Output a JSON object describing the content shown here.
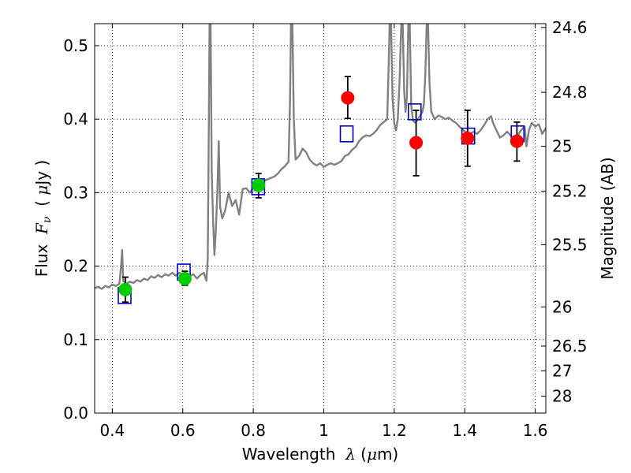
{
  "chart_data": {
    "type": "scatter",
    "xlabel": {
      "prefix": "Wavelength  ",
      "symbol": "λ",
      "unit_open": " (",
      "unit_mu": "μ",
      "unit_rest": "m)"
    },
    "ylabel": {
      "prefix": "Flux  ",
      "symbol": "F",
      "sub": "ν",
      "unit_open": "  ( ",
      "unit_mu": "μ",
      "unit_rest": "Jy )"
    },
    "y2label": "Magnitude (AB)",
    "xlim": [
      0.35,
      1.63
    ],
    "ylim": [
      0.0,
      0.53
    ],
    "grid": true,
    "grid_style": "dotted",
    "x_ticks": [
      {
        "value": 0.4,
        "label": "0.4"
      },
      {
        "value": 0.6,
        "label": "0.6"
      },
      {
        "value": 0.8,
        "label": "0.8"
      },
      {
        "value": 1.0,
        "label": "1"
      },
      {
        "value": 1.2,
        "label": "1.2"
      },
      {
        "value": 1.4,
        "label": "1.4"
      },
      {
        "value": 1.6,
        "label": "1.6"
      }
    ],
    "y_ticks": [
      {
        "value": 0.0,
        "label": "0.0"
      },
      {
        "value": 0.1,
        "label": "0.1"
      },
      {
        "value": 0.2,
        "label": "0.2"
      },
      {
        "value": 0.3,
        "label": "0.3"
      },
      {
        "value": 0.4,
        "label": "0.4"
      },
      {
        "value": 0.5,
        "label": "0.5"
      }
    ],
    "y2_ticks": [
      {
        "value": 24.6,
        "label": "24.6"
      },
      {
        "value": 24.8,
        "label": "24.8"
      },
      {
        "value": 25.0,
        "label": "25"
      },
      {
        "value": 25.2,
        "label": "25.2"
      },
      {
        "value": 25.5,
        "label": "25.5"
      },
      {
        "value": 26.0,
        "label": "26"
      },
      {
        "value": 26.5,
        "label": "26.5"
      },
      {
        "value": 27.0,
        "label": "27"
      },
      {
        "value": 28.0,
        "label": "28"
      }
    ],
    "series": [
      {
        "kind": "line",
        "color": "#808080",
        "points": [
          [
            0.35,
            0.17
          ],
          [
            0.36,
            0.172
          ],
          [
            0.37,
            0.169
          ],
          [
            0.38,
            0.173
          ],
          [
            0.39,
            0.171
          ],
          [
            0.4,
            0.175
          ],
          [
            0.41,
            0.173
          ],
          [
            0.42,
            0.176
          ],
          [
            0.425,
            0.2
          ],
          [
            0.428,
            0.222
          ],
          [
            0.431,
            0.18
          ],
          [
            0.44,
            0.176
          ],
          [
            0.45,
            0.179
          ],
          [
            0.46,
            0.177
          ],
          [
            0.47,
            0.181
          ],
          [
            0.48,
            0.179
          ],
          [
            0.49,
            0.183
          ],
          [
            0.5,
            0.181
          ],
          [
            0.51,
            0.186
          ],
          [
            0.52,
            0.184
          ],
          [
            0.53,
            0.188
          ],
          [
            0.54,
            0.185
          ],
          [
            0.55,
            0.189
          ],
          [
            0.56,
            0.187
          ],
          [
            0.57,
            0.191
          ],
          [
            0.58,
            0.187
          ],
          [
            0.59,
            0.191
          ],
          [
            0.6,
            0.186
          ],
          [
            0.61,
            0.19
          ],
          [
            0.62,
            0.186
          ],
          [
            0.63,
            0.189
          ],
          [
            0.64,
            0.183
          ],
          [
            0.65,
            0.188
          ],
          [
            0.66,
            0.191
          ],
          [
            0.667,
            0.18
          ],
          [
            0.671,
            0.21
          ],
          [
            0.674,
            0.4
          ],
          [
            0.676,
            0.53
          ],
          [
            0.679,
            0.53
          ],
          [
            0.682,
            0.33
          ],
          [
            0.686,
            0.26
          ],
          [
            0.69,
            0.215
          ],
          [
            0.694,
            0.25
          ],
          [
            0.698,
            0.3
          ],
          [
            0.702,
            0.37
          ],
          [
            0.706,
            0.28
          ],
          [
            0.712,
            0.265
          ],
          [
            0.72,
            0.275
          ],
          [
            0.73,
            0.3
          ],
          [
            0.74,
            0.282
          ],
          [
            0.75,
            0.29
          ],
          [
            0.76,
            0.27
          ],
          [
            0.77,
            0.305
          ],
          [
            0.78,
            0.306
          ],
          [
            0.79,
            0.3
          ],
          [
            0.8,
            0.306
          ],
          [
            0.81,
            0.31
          ],
          [
            0.82,
            0.314
          ],
          [
            0.83,
            0.316
          ],
          [
            0.84,
            0.318
          ],
          [
            0.85,
            0.32
          ],
          [
            0.86,
            0.322
          ],
          [
            0.87,
            0.326
          ],
          [
            0.88,
            0.332
          ],
          [
            0.89,
            0.336
          ],
          [
            0.9,
            0.342
          ],
          [
            0.904,
            0.42
          ],
          [
            0.907,
            0.53
          ],
          [
            0.911,
            0.53
          ],
          [
            0.915,
            0.4
          ],
          [
            0.92,
            0.345
          ],
          [
            0.93,
            0.35
          ],
          [
            0.94,
            0.36
          ],
          [
            0.95,
            0.355
          ],
          [
            0.96,
            0.345
          ],
          [
            0.97,
            0.34
          ],
          [
            0.98,
            0.337
          ],
          [
            0.99,
            0.34
          ],
          [
            1.0,
            0.335
          ],
          [
            1.01,
            0.338
          ],
          [
            1.02,
            0.34
          ],
          [
            1.03,
            0.338
          ],
          [
            1.04,
            0.34
          ],
          [
            1.05,
            0.343
          ],
          [
            1.06,
            0.35
          ],
          [
            1.07,
            0.352
          ],
          [
            1.08,
            0.358
          ],
          [
            1.09,
            0.362
          ],
          [
            1.1,
            0.37
          ],
          [
            1.11,
            0.375
          ],
          [
            1.12,
            0.378
          ],
          [
            1.13,
            0.377
          ],
          [
            1.14,
            0.38
          ],
          [
            1.15,
            0.385
          ],
          [
            1.16,
            0.392
          ],
          [
            1.17,
            0.396
          ],
          [
            1.18,
            0.4
          ],
          [
            1.184,
            0.47
          ],
          [
            1.187,
            0.53
          ],
          [
            1.191,
            0.53
          ],
          [
            1.195,
            0.43
          ],
          [
            1.2,
            0.395
          ],
          [
            1.205,
            0.385
          ],
          [
            1.21,
            0.4
          ],
          [
            1.215,
            0.45
          ],
          [
            1.22,
            0.53
          ],
          [
            1.224,
            0.53
          ],
          [
            1.228,
            0.44
          ],
          [
            1.232,
            0.41
          ],
          [
            1.236,
            0.43
          ],
          [
            1.24,
            0.53
          ],
          [
            1.244,
            0.53
          ],
          [
            1.248,
            0.42
          ],
          [
            1.253,
            0.398
          ],
          [
            1.26,
            0.395
          ],
          [
            1.27,
            0.402
          ],
          [
            1.28,
            0.41
          ],
          [
            1.284,
            0.42
          ],
          [
            1.288,
            0.46
          ],
          [
            1.292,
            0.53
          ],
          [
            1.296,
            0.53
          ],
          [
            1.3,
            0.45
          ],
          [
            1.305,
            0.41
          ],
          [
            1.315,
            0.4
          ],
          [
            1.325,
            0.405
          ],
          [
            1.335,
            0.403
          ],
          [
            1.345,
            0.4
          ],
          [
            1.355,
            0.402
          ],
          [
            1.365,
            0.398
          ],
          [
            1.375,
            0.395
          ],
          [
            1.385,
            0.39
          ],
          [
            1.395,
            0.385
          ],
          [
            1.405,
            0.382
          ],
          [
            1.415,
            0.38
          ],
          [
            1.425,
            0.383
          ],
          [
            1.435,
            0.38
          ],
          [
            1.445,
            0.385
          ],
          [
            1.455,
            0.392
          ],
          [
            1.465,
            0.4
          ],
          [
            1.475,
            0.404
          ],
          [
            1.48,
            0.395
          ],
          [
            1.49,
            0.385
          ],
          [
            1.5,
            0.375
          ],
          [
            1.51,
            0.378
          ],
          [
            1.52,
            0.383
          ],
          [
            1.53,
            0.378
          ],
          [
            1.54,
            0.373
          ],
          [
            1.55,
            0.378
          ],
          [
            1.56,
            0.385
          ],
          [
            1.57,
            0.39
          ],
          [
            1.575,
            0.363
          ],
          [
            1.582,
            0.385
          ],
          [
            1.59,
            0.395
          ],
          [
            1.6,
            0.39
          ],
          [
            1.61,
            0.393
          ],
          [
            1.62,
            0.38
          ],
          [
            1.63,
            0.388
          ]
        ]
      },
      {
        "kind": "open-square",
        "color": "#0000cc",
        "points": [
          [
            0.435,
            0.16
          ],
          [
            0.603,
            0.192
          ],
          [
            0.814,
            0.308
          ],
          [
            1.065,
            0.38
          ],
          [
            1.258,
            0.41
          ],
          [
            1.41,
            0.377
          ],
          [
            1.55,
            0.38
          ]
        ]
      },
      {
        "kind": "filled-circle",
        "color": "#00cc00",
        "points": [
          {
            "x": 0.437,
            "y": 0.168,
            "lo": 0.151,
            "hi": 0.185
          },
          {
            "x": 0.606,
            "y": 0.183,
            "lo": 0.174,
            "hi": 0.193
          },
          {
            "x": 0.815,
            "y": 0.31,
            "lo": 0.293,
            "hi": 0.326
          }
        ]
      },
      {
        "kind": "filled-circle",
        "color": "#ff0000",
        "points": [
          {
            "x": 1.068,
            "y": 0.429,
            "lo": 0.401,
            "hi": 0.458
          },
          {
            "x": 1.262,
            "y": 0.368,
            "lo": 0.323,
            "hi": 0.412
          },
          {
            "x": 1.408,
            "y": 0.374,
            "lo": 0.336,
            "hi": 0.412
          },
          {
            "x": 1.548,
            "y": 0.37,
            "lo": 0.343,
            "hi": 0.396
          }
        ]
      }
    ]
  }
}
